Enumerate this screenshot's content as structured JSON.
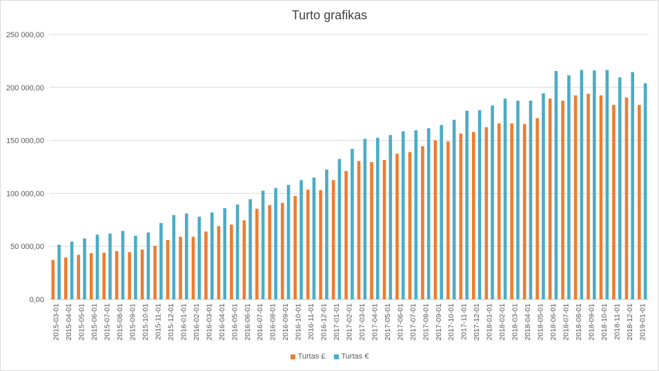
{
  "chart_data": {
    "type": "bar",
    "title": "Turto grafikas",
    "xlabel": "",
    "ylabel": "",
    "ylim": [
      0,
      250000
    ],
    "y_tick_labels": [
      "0,00",
      "50 000,00",
      "100 000,00",
      "150 000,00",
      "200 000,00",
      "250 000,00"
    ],
    "grid": true,
    "legend_position": "bottom",
    "categories": [
      "2015-03-01",
      "2015-04-01",
      "2015-05-01",
      "2015-06-01",
      "2015-07-01",
      "2015-08-01",
      "2015-09-01",
      "2015-10-01",
      "2015-11-01",
      "2015-12-01",
      "2016-01-01",
      "2016-02-01",
      "2016-03-01",
      "2016-04-01",
      "2016-05-01",
      "2016-06-01",
      "2016-07-01",
      "2016-08-01",
      "2016-09-01",
      "2016-10-01",
      "2016-11-01",
      "2016-12-01",
      "2017-01-01",
      "2017-02-01",
      "2017-03-01",
      "2017-04-01",
      "2017-05-01",
      "2017-06-01",
      "2017-07-01",
      "2017-08-01",
      "2017-09-01",
      "2017-10-01",
      "2017-11-01",
      "2017-12-01",
      "2018-01-01",
      "2018-02-01",
      "2018-03-01",
      "2018-04-01",
      "2018-05-01",
      "2018-06-01",
      "2018-07-01",
      "2018-08-01",
      "2018-09-01",
      "2018-10-01",
      "2018-11-01",
      "2018-12-01",
      "2019-01-01"
    ],
    "series": [
      {
        "name": "Turtas £",
        "color": "#ED7D31",
        "values": [
          37000,
          39500,
          42000,
          43500,
          44000,
          45500,
          44500,
          47000,
          50500,
          56000,
          59000,
          59000,
          64000,
          69000,
          70500,
          74500,
          85500,
          89000,
          91000,
          97500,
          103500,
          103000,
          112500,
          121000,
          130500,
          129500,
          131500,
          137500,
          139000,
          144500,
          150000,
          149000,
          156500,
          158000,
          162500,
          166000,
          166000,
          165500,
          171000,
          189500,
          187500,
          192500,
          194000,
          192500,
          183500,
          190500,
          183500
        ]
      },
      {
        "name": "Turtas €",
        "color": "#4BACC6",
        "values": [
          51500,
          54500,
          57500,
          61000,
          62000,
          64500,
          60000,
          63000,
          72000,
          79500,
          81000,
          78000,
          82000,
          86000,
          89500,
          94500,
          102500,
          105000,
          108000,
          112500,
          115000,
          122500,
          132500,
          142000,
          151500,
          152500,
          155000,
          158500,
          159500,
          161500,
          164500,
          169500,
          178000,
          178500,
          183000,
          189500,
          187500,
          187500,
          194500,
          215500,
          211500,
          216500,
          216000,
          216500,
          209500,
          214500,
          204000
        ]
      }
    ]
  }
}
